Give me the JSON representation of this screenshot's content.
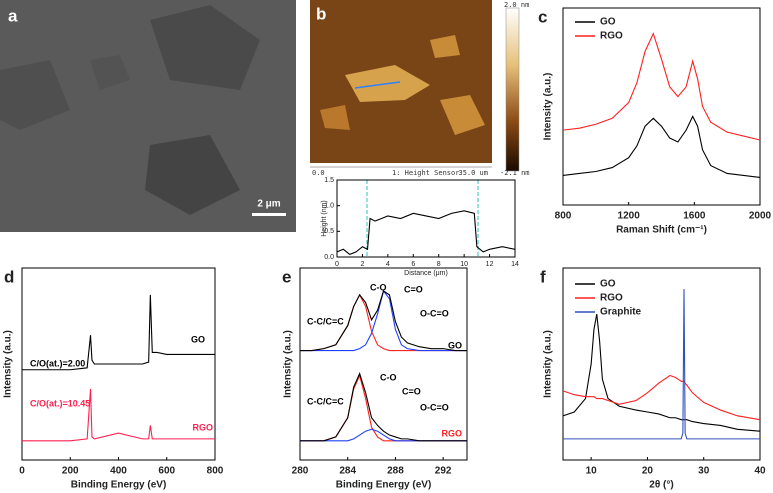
{
  "images": {
    "a": {
      "label": "a",
      "scale_bar": "2 μm"
    },
    "b": {
      "label": "b",
      "colorbar_max": "2.0 nm",
      "colorbar_min": "-2.1 nm",
      "x_start": "0.0",
      "channel": "1: Height Sensor",
      "x_end": "35.0 um"
    }
  },
  "chart_data": [
    {
      "type": "line",
      "panel": "c",
      "xlabel": "Raman Shift (cm⁻¹)",
      "ylabel": "Intensity (a.u.)",
      "xlim": [
        800,
        2000
      ],
      "xticks": [
        800,
        1200,
        1600,
        2000
      ],
      "ylim": [
        0,
        100
      ],
      "legend": "top-left",
      "x": [
        800,
        900,
        1000,
        1100,
        1200,
        1250,
        1300,
        1350,
        1400,
        1450,
        1500,
        1550,
        1590,
        1620,
        1650,
        1700,
        1800,
        1900,
        2000
      ],
      "series": [
        {
          "name": "GO",
          "color": "#000000",
          "values": [
            15,
            16,
            17,
            19,
            24,
            30,
            40,
            44,
            40,
            34,
            32,
            38,
            45,
            40,
            28,
            20,
            16,
            15,
            14
          ]
        },
        {
          "name": "RGO",
          "color": "#ff2020",
          "values": [
            38,
            39,
            41,
            44,
            52,
            62,
            78,
            87,
            74,
            60,
            55,
            60,
            73,
            64,
            50,
            42,
            37,
            35,
            33
          ]
        }
      ]
    },
    {
      "type": "line",
      "panel": "d",
      "xlabel": "Binding Energy (eV)",
      "ylabel": "Intensity (a.u.)",
      "xlim": [
        0,
        800
      ],
      "xticks": [
        0,
        200,
        400,
        600,
        800
      ],
      "ylim": [
        0,
        100
      ],
      "annotations": [
        "GO",
        "C/O(at.)=2.00",
        "RGO",
        "C/O(at.)=10.45"
      ],
      "x": [
        0,
        100,
        200,
        270,
        284,
        290,
        300,
        400,
        500,
        525,
        532,
        540,
        560,
        600,
        700,
        800
      ],
      "series": [
        {
          "color": "#000000",
          "values": [
            47,
            47,
            47,
            48,
            65,
            52,
            50,
            50,
            50,
            51,
            86,
            56,
            56,
            55,
            55,
            55
          ]
        },
        {
          "color": "#ff2050",
          "values": [
            10,
            10,
            10,
            11,
            37,
            12,
            11,
            14,
            11,
            11,
            18,
            11,
            11,
            11,
            11,
            11
          ]
        }
      ]
    },
    {
      "type": "line",
      "panel": "e",
      "xlabel": "Binding Energy (eV)",
      "ylabel": "Intensity (a.u.)",
      "xlim": [
        280,
        294
      ],
      "xticks": [
        280,
        284,
        288,
        292
      ],
      "ylim": [
        0,
        100
      ],
      "annotations": [
        "C-C/C=C",
        "C-O",
        "C=O",
        "O-C=O",
        "GO",
        "C-C/C=C",
        "C-O",
        "C=O",
        "O-C=O",
        "RGO"
      ],
      "x": [
        280,
        281,
        282,
        283,
        284,
        284.5,
        285,
        285.5,
        286,
        286.5,
        287,
        287.5,
        288,
        288.5,
        289,
        290,
        291,
        292,
        293,
        294
      ],
      "series": [
        {
          "color": "#ff2020",
          "values": [
            57,
            57,
            58,
            60,
            70,
            80,
            86,
            80,
            67,
            60,
            58,
            57,
            57,
            57,
            57,
            57,
            57,
            57,
            57,
            57
          ]
        },
        {
          "color": "#2040ff",
          "values": [
            57,
            57,
            57,
            57,
            57,
            57,
            58,
            60,
            66,
            76,
            88,
            84,
            68,
            60,
            58,
            57,
            57,
            57,
            57,
            57
          ]
        },
        {
          "color": "#000000",
          "values": [
            57,
            57,
            58,
            60,
            70,
            80,
            86,
            82,
            73,
            78,
            88,
            86,
            72,
            64,
            61,
            59,
            58,
            58,
            57,
            57
          ]
        },
        {
          "color": "#ff2020",
          "values": [
            10,
            10,
            10,
            12,
            22,
            37,
            44,
            32,
            17,
            12,
            10,
            10,
            10,
            10,
            10,
            10,
            10,
            10,
            10,
            10
          ]
        },
        {
          "color": "#2040ff",
          "values": [
            10,
            10,
            10,
            10,
            10,
            11,
            13,
            15,
            16,
            15,
            13,
            11,
            10,
            10,
            10,
            10,
            10,
            10,
            10,
            10
          ]
        },
        {
          "color": "#000000",
          "values": [
            10,
            10,
            10,
            12,
            22,
            38,
            45,
            35,
            22,
            18,
            15,
            13,
            12,
            11,
            11,
            10,
            10,
            10,
            10,
            10
          ]
        }
      ]
    },
    {
      "type": "line",
      "panel": "f",
      "xlabel": "2θ (°)",
      "ylabel": "Intensity (a.u.)",
      "xlim": [
        5,
        40
      ],
      "xticks": [
        10,
        20,
        30,
        40
      ],
      "ylim": [
        0,
        100
      ],
      "legend": "top-left",
      "x": [
        5,
        7,
        9,
        10,
        10.5,
        11,
        11.5,
        12,
        13,
        15,
        18,
        20,
        22,
        24,
        25,
        26,
        26.3,
        26.5,
        26.7,
        27,
        28,
        30,
        33,
        36,
        40
      ],
      "series": [
        {
          "name": "GO",
          "color": "#000000",
          "values": [
            23,
            25,
            32,
            50,
            68,
            76,
            62,
            42,
            32,
            28,
            26,
            25,
            24,
            22,
            22,
            21,
            21,
            21,
            21,
            21,
            20,
            19,
            18,
            16,
            15
          ]
        },
        {
          "name": "RGO",
          "color": "#ff2020",
          "values": [
            36,
            34,
            33,
            33,
            33,
            32,
            32,
            32,
            31,
            29,
            31,
            35,
            40,
            44,
            43,
            41,
            41,
            41,
            40,
            39,
            35,
            30,
            26,
            23,
            21
          ]
        },
        {
          "name": "Graphite",
          "color": "#3050c0",
          "values": [
            11,
            11,
            11,
            11,
            11,
            11,
            11,
            11,
            11,
            11,
            11,
            11,
            11,
            11,
            11,
            11,
            14,
            89,
            14,
            11,
            11,
            11,
            11,
            11,
            11
          ]
        }
      ]
    },
    {
      "type": "line",
      "xlabel": "Distance (μm)",
      "ylabel": "Height (nm)",
      "xlim": [
        0,
        14
      ],
      "xticks": [
        0,
        2,
        4,
        6,
        8,
        10,
        12,
        14
      ],
      "ylim": [
        0,
        1.5
      ],
      "yticks": [
        {
          "value": 0,
          "label": "0.0"
        },
        0.5,
        {
          "value": 1,
          "label": "1.0"
        },
        1.5
      ],
      "x": [
        0,
        0.5,
        1,
        1.5,
        2,
        2.4,
        2.6,
        3,
        4,
        5,
        6,
        7,
        8,
        9,
        10,
        10.8,
        11,
        11.5,
        12,
        13,
        14
      ],
      "series": [
        {
          "color": "#000000",
          "values": [
            0.1,
            0.15,
            0.05,
            0.1,
            0.2,
            0.15,
            0.75,
            0.7,
            0.8,
            0.75,
            0.85,
            0.8,
            0.75,
            0.85,
            0.9,
            0.85,
            0.2,
            0.1,
            0.15,
            0.2,
            0.15
          ]
        }
      ]
    }
  ]
}
